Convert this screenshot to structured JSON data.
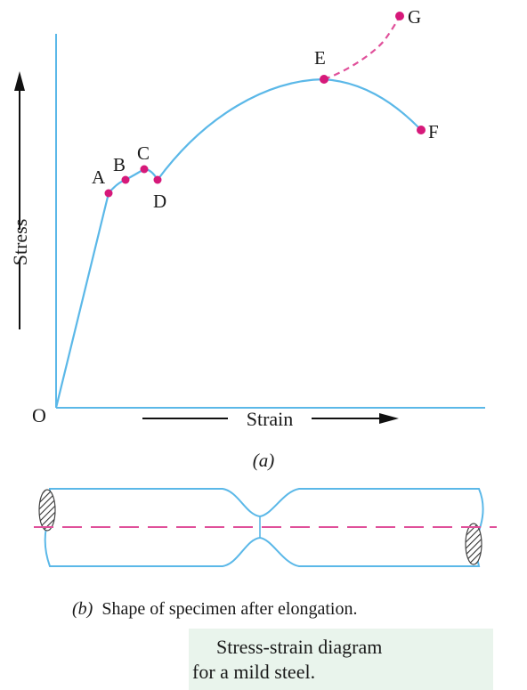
{
  "stress_strain": {
    "origin_label": "O",
    "y_axis_label": "Stress",
    "x_axis_label": "Strain",
    "points": [
      {
        "id": "A",
        "label": "A"
      },
      {
        "id": "B",
        "label": "B"
      },
      {
        "id": "C",
        "label": "C"
      },
      {
        "id": "D",
        "label": "D"
      },
      {
        "id": "E",
        "label": "E"
      },
      {
        "id": "F",
        "label": "F"
      },
      {
        "id": "G",
        "label": "G"
      }
    ],
    "subfigure_label": "(a)"
  },
  "specimen": {
    "caption_prefix": "(b)",
    "caption_text": "Shape of specimen after elongation."
  },
  "caption": {
    "line1": "Stress-strain diagram",
    "line2": "for a mild steel."
  },
  "colors": {
    "curve": "#5bb8e8",
    "points": "#d6197a",
    "dashed": "#e0509a",
    "axes": "#5bb8e8",
    "arrows": "#111111"
  }
}
